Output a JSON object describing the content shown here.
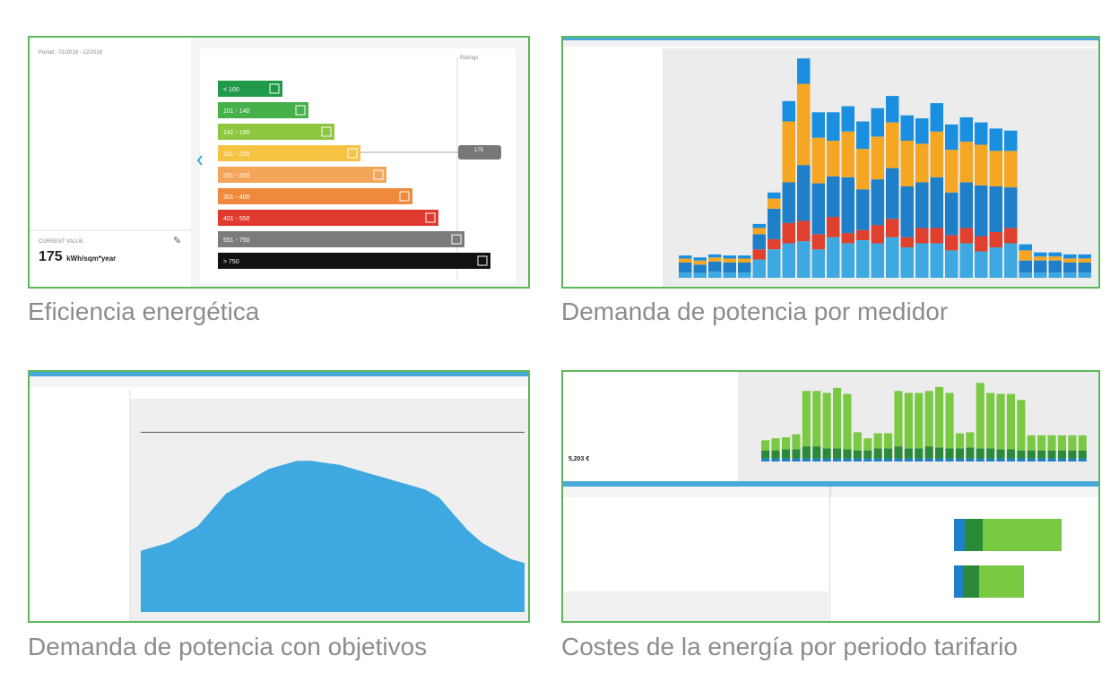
{
  "colors": {
    "tile_border": "#5cb85c",
    "caption": "#8c8c8c",
    "blue_light": "#3da9e0",
    "blue": "#1f7fc9",
    "orange": "#f5a623",
    "red": "#e0412e",
    "green": "#7ac943",
    "green_dark": "#2a8a3a",
    "header_bar": "#4aa8d8"
  },
  "tiles": [
    {
      "caption": "Eficiencia energética",
      "period": "Period : 01/2018 - 12/2018",
      "current_label": "CURRENT VALUE",
      "current_value": "175",
      "current_unit": "kWh/sqm*year",
      "right_label": "Ratings",
      "indicator_value": "175",
      "bands": [
        {
          "label": "< 100",
          "color": "#1f9a4a"
        },
        {
          "label": "101 - 140",
          "color": "#46b04a"
        },
        {
          "label": "141 - 180",
          "color": "#8dc63f"
        },
        {
          "label": "181 - 250",
          "color": "#f6c343"
        },
        {
          "label": "251 - 300",
          "color": "#f5a55a"
        },
        {
          "label": "301 - 400",
          "color": "#ef8a3c"
        },
        {
          "label": "401 - 550",
          "color": "#e0392f"
        },
        {
          "label": "551 - 750",
          "color": "#7b7b7b"
        },
        {
          "label": "> 750",
          "color": "#111111"
        }
      ]
    },
    {
      "caption": "Demanda de potencia por medidor"
    },
    {
      "caption": "Demanda de potencia con objetivos"
    },
    {
      "caption": "Costes de la energía por periodo tarifario",
      "total_value": "5,203 €"
    }
  ],
  "chart_data": [
    {
      "type": "bar",
      "stacked": true,
      "series": [
        {
          "color": "#3da9e0",
          "values": [
            5,
            5,
            6,
            5,
            5,
            18,
            28,
            34,
            36,
            28,
            40,
            34,
            37,
            34,
            40,
            30,
            34,
            34,
            27,
            34,
            26,
            30,
            34,
            5,
            5,
            5,
            5,
            5
          ]
        },
        {
          "color": "#e0412e",
          "values": [
            0,
            0,
            0,
            0,
            0,
            10,
            10,
            20,
            20,
            15,
            20,
            10,
            10,
            18,
            18,
            10,
            15,
            15,
            15,
            15,
            15,
            15,
            15,
            0,
            0,
            0,
            0,
            0
          ]
        },
        {
          "color": "#1f7fc9",
          "values": [
            10,
            8,
            10,
            10,
            10,
            15,
            30,
            40,
            55,
            50,
            40,
            55,
            40,
            45,
            50,
            50,
            45,
            50,
            42,
            45,
            50,
            45,
            40,
            12,
            12,
            12,
            10,
            10
          ]
        },
        {
          "color": "#f5a623",
          "values": [
            4,
            4,
            4,
            4,
            4,
            6,
            10,
            60,
            80,
            45,
            35,
            45,
            40,
            42,
            45,
            45,
            38,
            45,
            42,
            40,
            40,
            35,
            36,
            10,
            4,
            4,
            4,
            4
          ]
        },
        {
          "color": "#1a8fe0",
          "values": [
            3,
            3,
            3,
            3,
            3,
            4,
            6,
            20,
            25,
            25,
            28,
            25,
            27,
            28,
            26,
            25,
            25,
            28,
            25,
            24,
            22,
            22,
            20,
            6,
            4,
            4,
            4,
            4
          ]
        }
      ]
    },
    {
      "type": "area",
      "series": [
        {
          "color": "#3da9e0",
          "values": [
            30,
            32,
            34,
            38,
            42,
            50,
            58,
            62,
            66,
            70,
            72,
            74,
            74,
            73,
            72,
            70,
            68,
            66,
            64,
            62,
            60,
            56,
            48,
            40,
            34,
            30,
            26,
            24
          ]
        }
      ],
      "target_line": 88
    },
    {
      "type": "bar",
      "stacked": true,
      "series": [
        {
          "color": "#1f7fc9",
          "values": [
            3,
            3,
            3,
            3,
            3,
            3,
            3,
            3,
            3,
            3,
            3,
            3,
            3,
            3,
            3,
            3,
            3,
            3,
            3,
            3,
            3,
            3,
            3,
            3,
            3,
            3,
            3,
            3,
            3,
            3,
            3,
            3
          ]
        },
        {
          "color": "#2a8a3a",
          "values": [
            8,
            8,
            9,
            9,
            12,
            12,
            10,
            10,
            9,
            8,
            8,
            10,
            10,
            12,
            10,
            10,
            12,
            11,
            10,
            10,
            11,
            10,
            10,
            9,
            9,
            8,
            8,
            8,
            8,
            8,
            8,
            8
          ]
        },
        {
          "color": "#7ac943",
          "values": [
            10,
            12,
            12,
            15,
            55,
            55,
            55,
            60,
            55,
            18,
            12,
            15,
            15,
            55,
            55,
            55,
            55,
            60,
            55,
            15,
            15,
            65,
            55,
            55,
            55,
            50,
            15,
            15,
            15,
            15,
            15,
            15
          ]
        }
      ]
    },
    {
      "type": "bar",
      "orientation": "horizontal",
      "stacked": true,
      "series": [
        {
          "color": "#1f7fc9",
          "values": [
            12,
            10
          ]
        },
        {
          "color": "#2a8a3a",
          "values": [
            20,
            18
          ]
        },
        {
          "color": "#7ac943",
          "values": [
            88,
            50
          ]
        }
      ]
    }
  ]
}
